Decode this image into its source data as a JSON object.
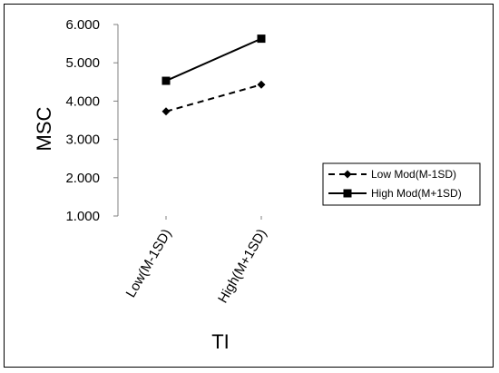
{
  "chart_data": {
    "type": "line",
    "categories": [
      "Low(M-1SD)",
      "High(M+1SD)"
    ],
    "series": [
      {
        "name": "Low Mod(M-1SD)",
        "values": [
          3.73,
          4.43
        ],
        "style": "dashed",
        "marker": "diamond",
        "color": "#000000"
      },
      {
        "name": "High Mod(M+1SD)",
        "values": [
          4.53,
          5.63
        ],
        "style": "solid",
        "marker": "square",
        "color": "#000000"
      }
    ],
    "yticks": [
      "1.000",
      "2.000",
      "3.000",
      "4.000",
      "5.000",
      "6.000"
    ],
    "ylim": [
      1,
      6
    ],
    "xlabel": "TI",
    "ylabel": "MSC",
    "legend_position": "right",
    "grid": false
  }
}
